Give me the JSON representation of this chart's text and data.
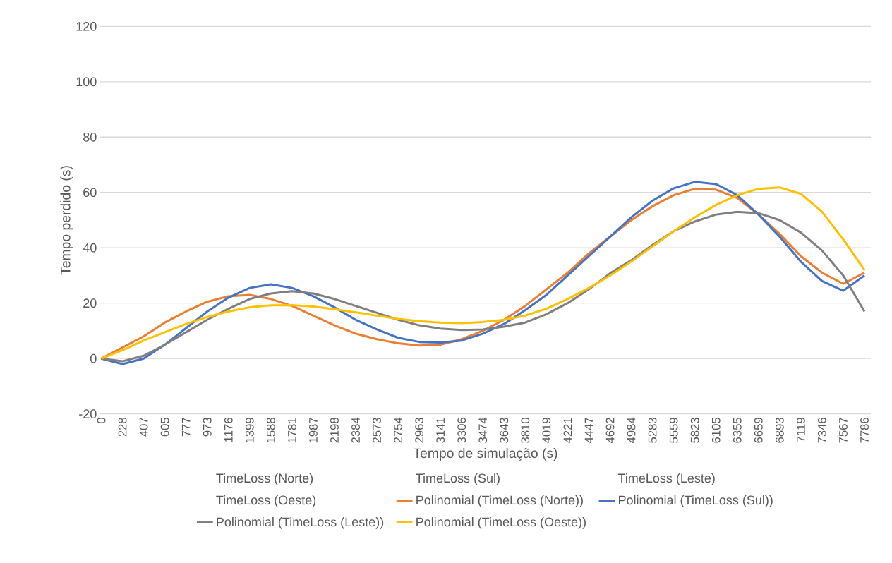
{
  "chart_data": {
    "type": "line",
    "xlabel": "Tempo de simulação (s)",
    "ylabel": "Tempo perdido (s)",
    "categories": [
      "0",
      "228",
      "407",
      "605",
      "777",
      "973",
      "1176",
      "1399",
      "1588",
      "1781",
      "1987",
      "2198",
      "2384",
      "2573",
      "2754",
      "2963",
      "3141",
      "3306",
      "3474",
      "3643",
      "3810",
      "4019",
      "4221",
      "4447",
      "4692",
      "4984",
      "5283",
      "5559",
      "5823",
      "6105",
      "6355",
      "6659",
      "6893",
      "7119",
      "7346",
      "7567",
      "7786"
    ],
    "ylim": [
      -20,
      120
    ],
    "yticks": [
      -20,
      0,
      20,
      40,
      60,
      80,
      100,
      120
    ],
    "grid": "y",
    "legend": "bottom",
    "marker": "none",
    "line_style": "solid",
    "series": [
      {
        "name": "TimeLoss (Norte)",
        "color": null,
        "values": [
          null,
          null,
          null,
          null,
          null,
          null,
          null,
          null,
          null,
          null,
          null,
          null,
          null,
          null,
          null,
          null,
          null,
          null,
          null,
          null,
          null,
          null,
          null,
          null,
          null,
          null,
          null,
          null,
          null,
          null,
          null,
          null,
          null,
          null,
          null,
          null,
          null
        ]
      },
      {
        "name": "TimeLoss (Sul)",
        "color": null,
        "values": [
          null,
          null,
          null,
          null,
          null,
          null,
          null,
          null,
          null,
          null,
          null,
          null,
          null,
          null,
          null,
          null,
          null,
          null,
          null,
          null,
          null,
          null,
          null,
          null,
          null,
          null,
          null,
          null,
          null,
          null,
          null,
          null,
          null,
          null,
          null,
          null,
          null
        ]
      },
      {
        "name": "TimeLoss (Leste)",
        "color": null,
        "values": [
          null,
          null,
          null,
          null,
          null,
          null,
          null,
          null,
          null,
          null,
          null,
          null,
          null,
          null,
          null,
          null,
          null,
          null,
          null,
          null,
          null,
          null,
          null,
          null,
          null,
          null,
          null,
          null,
          null,
          null,
          null,
          null,
          null,
          null,
          null,
          null,
          null
        ]
      },
      {
        "name": "TimeLoss (Oeste)",
        "color": null,
        "values": [
          null,
          null,
          null,
          null,
          null,
          null,
          null,
          null,
          null,
          null,
          null,
          null,
          null,
          null,
          null,
          null,
          null,
          null,
          null,
          null,
          null,
          null,
          null,
          null,
          null,
          null,
          null,
          null,
          null,
          null,
          null,
          null,
          null,
          null,
          null,
          null,
          null
        ]
      },
      {
        "name": "Polinomial (TimeLoss (Norte))",
        "color": "#ed7d31",
        "values": [
          0,
          4,
          8,
          13,
          17,
          20.5,
          22.5,
          23,
          21.5,
          19,
          15.5,
          12,
          9,
          7,
          5.5,
          4.7,
          5,
          7,
          10,
          14,
          19,
          25,
          31,
          38,
          44,
          50,
          55,
          59,
          61.3,
          61,
          58,
          52,
          45,
          37,
          31,
          27,
          31
        ]
      },
      {
        "name": "Polinomial (TimeLoss (Sul))",
        "color": "#4472c4",
        "values": [
          0,
          -2,
          0,
          5,
          11,
          17,
          22,
          25.5,
          26.8,
          25.5,
          22.5,
          18.5,
          14,
          10.5,
          7.5,
          6,
          5.8,
          6.5,
          9,
          12.5,
          17.5,
          23,
          30,
          37,
          44,
          51,
          57,
          61.5,
          63.8,
          63,
          59,
          52,
          44,
          35,
          28,
          24.5,
          30
        ]
      },
      {
        "name": "Polinomial (TimeLoss (Leste))",
        "color": "#7f7f7f",
        "values": [
          0,
          -1,
          1,
          5,
          9.5,
          14,
          18,
          21.5,
          23.5,
          24.3,
          23.5,
          21.5,
          19,
          16.5,
          14,
          12,
          10.8,
          10.3,
          10.5,
          11.5,
          13,
          16,
          20,
          25,
          30.8,
          35.5,
          41,
          46,
          49.5,
          52,
          53,
          52.5,
          50,
          45.5,
          39,
          30,
          17
        ]
      },
      {
        "name": "Polinomial (TimeLoss (Oeste))",
        "color": "#ffc000",
        "values": [
          0,
          3,
          6.5,
          9.5,
          12.5,
          15,
          17,
          18.5,
          19.2,
          19.3,
          18.8,
          17.8,
          16.7,
          15.5,
          14.3,
          13.5,
          13,
          12.8,
          13.2,
          14,
          15.5,
          18,
          21.5,
          25.5,
          30,
          35,
          40.5,
          46,
          51,
          55.5,
          59,
          61.3,
          61.8,
          59.5,
          53,
          43,
          32
        ]
      }
    ]
  }
}
